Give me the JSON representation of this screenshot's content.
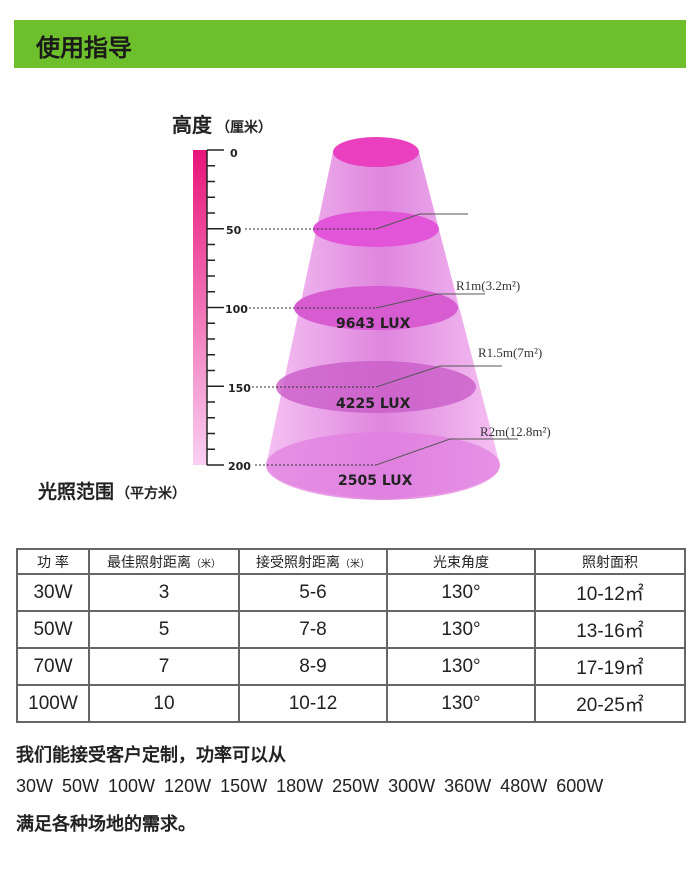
{
  "header": {
    "title": "使用指导"
  },
  "diagram": {
    "height_label": "高度",
    "height_unit": "（厘米）",
    "area_label": "光照范围",
    "area_unit": "（平方米）",
    "scale_ticks": [
      "0",
      "50",
      "100",
      "150",
      "200"
    ],
    "lux": [
      "9643 LUX",
      "4225 LUX",
      "2505 LUX"
    ],
    "radius": [
      "R1m(3.2m²)",
      "R1.5m(7m²)",
      "R2m(12.8m²)"
    ],
    "colors": {
      "cone": "#e87ce8",
      "scale_top": "#e8157a",
      "scale_bottom": "#f7c6ee"
    }
  },
  "table": {
    "headers": [
      "功 率",
      "最佳照射距离",
      "接受照射距离",
      "光束角度",
      "照射面积"
    ],
    "unit": "（米）",
    "rows": [
      [
        "30W",
        "3",
        "5-6",
        "130°",
        "10-12㎡"
      ],
      [
        "50W",
        "5",
        "7-8",
        "130°",
        "13-16㎡"
      ],
      [
        "70W",
        "7",
        "8-9",
        "130°",
        "17-19㎡"
      ],
      [
        "100W",
        "10",
        "10-12",
        "130°",
        "20-25㎡"
      ]
    ]
  },
  "notes": {
    "line1": "我们能接受客户定制，功率可以从",
    "line2": "30W 50W 100W 120W 150W 180W 250W 300W 360W 480W 600W",
    "line3": "满足各种场地的需求。"
  }
}
